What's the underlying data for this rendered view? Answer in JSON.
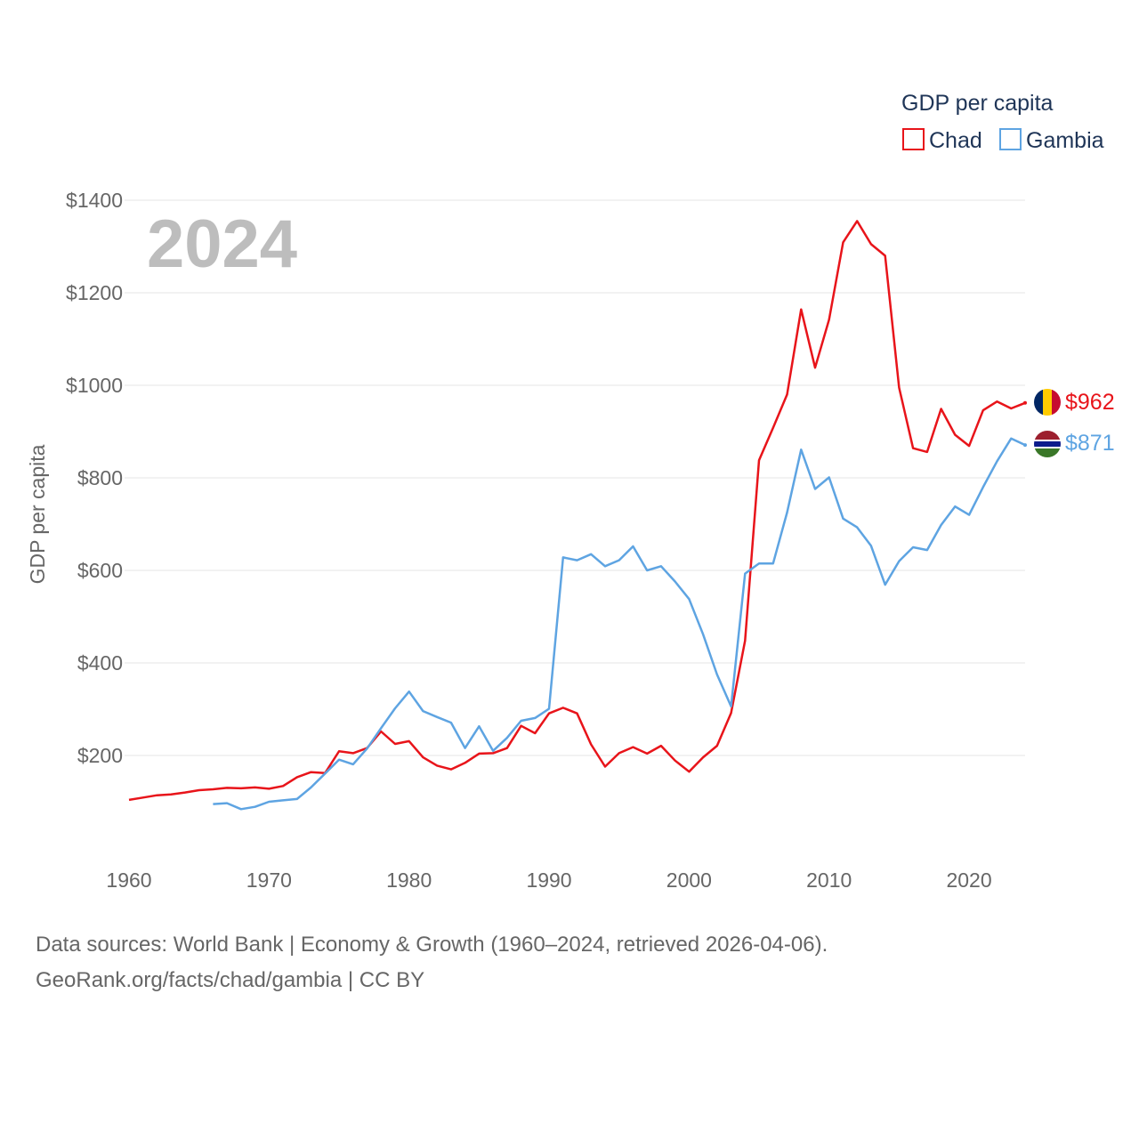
{
  "chart_data": {
    "type": "line",
    "title": "GDP per capita",
    "ylabel": "GDP per capita",
    "xlabel": "",
    "year_label": "2024",
    "xlim": [
      1960,
      2024
    ],
    "ylim": [
      0,
      1400
    ],
    "x_ticks": [
      1960,
      1970,
      1980,
      1990,
      2000,
      2010,
      2020
    ],
    "y_ticks": [
      200,
      400,
      600,
      800,
      1000,
      1200,
      1400
    ],
    "y_tick_labels": [
      "$200",
      "$400",
      "$600",
      "$800",
      "$1000",
      "$1200",
      "$1400"
    ],
    "grid": true,
    "legend_position": "top-right",
    "series": [
      {
        "name": "Chad",
        "color": "#e8141a",
        "end_label": "$962",
        "flag": "chad-flag",
        "x": [
          1960,
          1961,
          1962,
          1963,
          1964,
          1965,
          1966,
          1967,
          1968,
          1969,
          1970,
          1971,
          1972,
          1973,
          1974,
          1975,
          1976,
          1977,
          1978,
          1979,
          1980,
          1981,
          1982,
          1983,
          1984,
          1985,
          1986,
          1987,
          1988,
          1989,
          1990,
          1991,
          1992,
          1993,
          1994,
          1995,
          1996,
          1997,
          1998,
          1999,
          2000,
          2001,
          2002,
          2003,
          2004,
          2005,
          2006,
          2007,
          2008,
          2009,
          2010,
          2011,
          2012,
          2013,
          2014,
          2015,
          2016,
          2017,
          2018,
          2019,
          2020,
          2021,
          2022,
          2023,
          2024
        ],
        "values": [
          104,
          109,
          114,
          116,
          120,
          125,
          127,
          130,
          129,
          131,
          128,
          134,
          153,
          164,
          162,
          209,
          205,
          216,
          252,
          225,
          231,
          196,
          178,
          170,
          184,
          204,
          205,
          216,
          264,
          248,
          291,
          303,
          291,
          224,
          176,
          205,
          218,
          204,
          221,
          189,
          165,
          196,
          221,
          292,
          448,
          838,
          908,
          980,
          1164,
          1038,
          1142,
          1309,
          1355,
          1305,
          1280,
          995,
          864,
          856,
          949,
          893,
          869,
          946,
          965,
          950,
          962
        ]
      },
      {
        "name": "Gambia",
        "color": "#5ea4e2",
        "end_label": "$871",
        "flag": "gambia-flag",
        "x": [
          1966,
          1967,
          1968,
          1969,
          1970,
          1971,
          1972,
          1973,
          1974,
          1975,
          1976,
          1977,
          1978,
          1979,
          1980,
          1981,
          1982,
          1983,
          1984,
          1985,
          1986,
          1987,
          1988,
          1989,
          1990,
          1991,
          1992,
          1993,
          1994,
          1995,
          1996,
          1997,
          1998,
          1999,
          2000,
          2001,
          2002,
          2003,
          2004,
          2005,
          2006,
          2007,
          2008,
          2009,
          2010,
          2011,
          2012,
          2013,
          2014,
          2015,
          2016,
          2017,
          2018,
          2019,
          2020,
          2021,
          2022,
          2023,
          2024
        ],
        "values": [
          95,
          97,
          84,
          89,
          100,
          103,
          106,
          131,
          161,
          191,
          181,
          215,
          259,
          302,
          338,
          296,
          283,
          271,
          216,
          263,
          210,
          238,
          275,
          281,
          301,
          628,
          622,
          635,
          609,
          622,
          652,
          600,
          609,
          576,
          538,
          462,
          375,
          306,
          593,
          615,
          615,
          725,
          861,
          776,
          801,
          712,
          693,
          653,
          569,
          620,
          650,
          644,
          698,
          738,
          720,
          780,
          836,
          885,
          871
        ]
      }
    ]
  },
  "footer": {
    "source_line1": "Data sources: World Bank | Economy & Growth (1960–2024, retrieved 2026-04-06).",
    "source_line2": "GeoRank.org/facts/chad/gambia | CC BY"
  }
}
